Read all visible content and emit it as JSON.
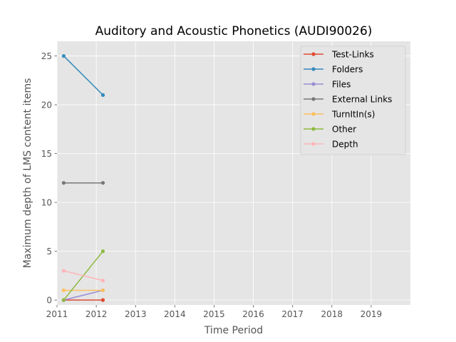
{
  "chart_data": {
    "type": "line",
    "title": "Auditory and Acoustic Phonetics (AUDI90026)",
    "xlabel": "Time Period",
    "ylabel": "Maximum depth of LMS content items",
    "xlim": [
      2011,
      2020
    ],
    "ylim": [
      -0.5,
      26.5
    ],
    "xticks": [
      "2011",
      "2012",
      "2013",
      "2014",
      "2015",
      "2016",
      "2017",
      "2018",
      "2019"
    ],
    "yticks": [
      "0",
      "5",
      "10",
      "15",
      "20",
      "25"
    ],
    "x": [
      2011.17,
      2012.17
    ],
    "grid": true,
    "legend_position": "top-right",
    "series": [
      {
        "name": "Test-Links",
        "color": "#E24A33",
        "values": [
          0,
          0
        ]
      },
      {
        "name": "Folders",
        "color": "#348ABD",
        "values": [
          25,
          21
        ]
      },
      {
        "name": "Files",
        "color": "#988ED5",
        "values": [
          0,
          1
        ]
      },
      {
        "name": "External Links",
        "color": "#777777",
        "values": [
          12,
          12
        ]
      },
      {
        "name": "TurnItIn(s)",
        "color": "#FBC15E",
        "values": [
          1,
          1
        ]
      },
      {
        "name": "Other",
        "color": "#8EBA42",
        "values": [
          0,
          5
        ]
      },
      {
        "name": "Depth",
        "color": "#FFB5B8",
        "values": [
          3,
          2
        ]
      }
    ]
  }
}
